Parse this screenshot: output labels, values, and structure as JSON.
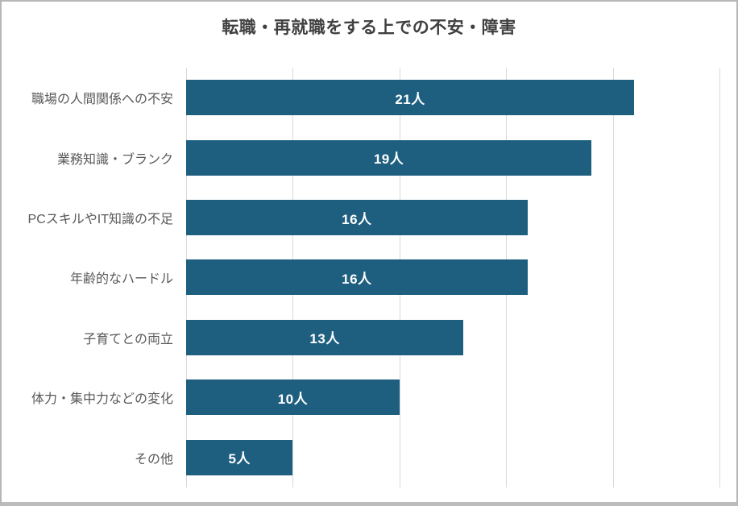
{
  "chart_data": {
    "type": "bar",
    "orientation": "horizontal",
    "title": "転職・再就職をする上での不安・障害",
    "categories": [
      "職場の人間関係への不安",
      "業務知識・ブランク",
      "PCスキルやIT知識の不足",
      "年齢的なハードル",
      "子育てとの両立",
      "体力・集中力などの変化",
      "その他"
    ],
    "values": [
      21,
      19,
      16,
      16,
      13,
      10,
      5
    ],
    "data_labels": [
      "21人",
      "19人",
      "16人",
      "16人",
      "13人",
      "10人",
      "5人"
    ],
    "unit": "人",
    "xlim": [
      0,
      25
    ],
    "gridline_interval": 5,
    "grid": true,
    "legend": false,
    "x_tick_labels_visible": false,
    "colors": {
      "bar": "#1e5f80",
      "title": "#404040",
      "category_label": "#595959",
      "value_label": "#ffffff",
      "gridline": "#d9d9d9",
      "frame_border": "#b7b7b7",
      "background": "#ffffff"
    }
  }
}
